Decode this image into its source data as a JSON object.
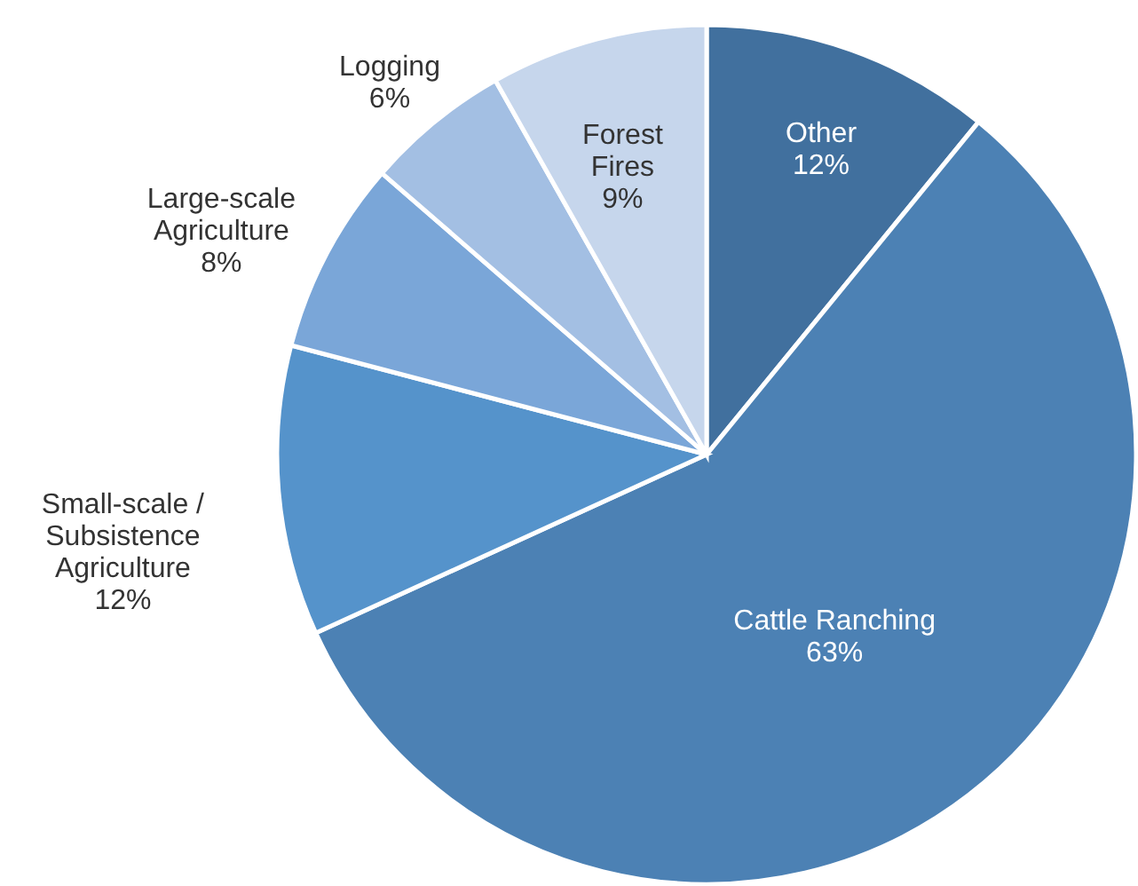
{
  "chart_data": {
    "type": "pie",
    "categories": [
      "Other",
      "Cattle Ranching",
      "Small-scale / Subsistence Agriculture",
      "Large-scale Agriculture",
      "Logging",
      "Forest Fires"
    ],
    "values": [
      12,
      63,
      12,
      8,
      6,
      9
    ],
    "value_labels": [
      "12%",
      "63%",
      "12%",
      "8%",
      "6%",
      "9%"
    ],
    "colors": [
      "#41709e",
      "#4c81b4",
      "#5593cb",
      "#7aa6d8",
      "#a3bfe3",
      "#c6d6ec"
    ]
  }
}
